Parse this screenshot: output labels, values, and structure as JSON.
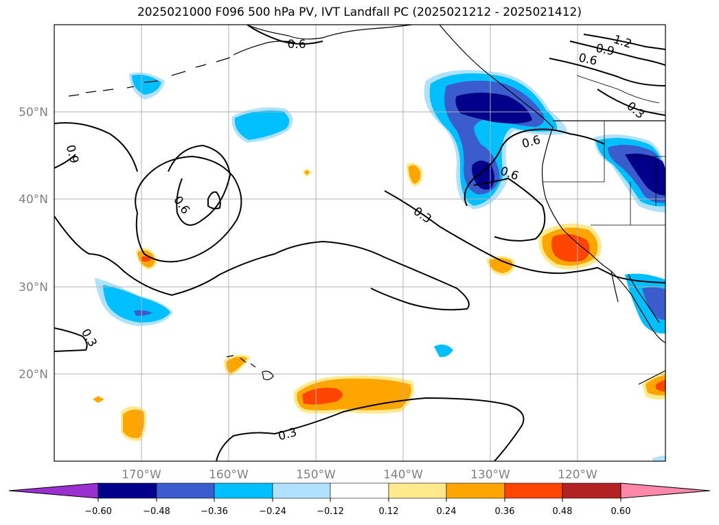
{
  "title": "2025021000 F096 500 hPa PV, IVT Landfall PC (2025021212 - 2025021412)",
  "latitude_labels": [
    "50°N",
    "40°N",
    "30°N",
    "20°N"
  ],
  "longitude_labels": [
    "170°W",
    "160°W",
    "150°W",
    "140°W",
    "130°W",
    "120°W"
  ],
  "contour_labels": [
    "0.6",
    "0.9",
    "1.2",
    "0.6",
    "0.3",
    "0.6",
    "0.6",
    "0.9",
    "0.3",
    "0.6",
    "0.3",
    "0.3"
  ],
  "colorbar": {
    "ticks": [
      "−0.60",
      "−0.48",
      "−0.36",
      "−0.24",
      "−0.12",
      "0.12",
      "0.24",
      "0.36",
      "0.48",
      "0.60"
    ],
    "colors": [
      "#9b30d0",
      "#00008b",
      "#3a5ccc",
      "#00bfff",
      "#b0e2ff",
      "#ffffff",
      "#ffe98c",
      "#ffa500",
      "#ff4500",
      "#b22222",
      "#ff88aa"
    ]
  },
  "colors": {
    "dark_blue": "#00008b",
    "mid_blue": "#3a5ccc",
    "cyan": "#00bfff",
    "light_blue": "#b0e2ff",
    "light_yellow": "#ffe98c",
    "orange": "#ffa500",
    "red_orange": "#ff4500"
  }
}
